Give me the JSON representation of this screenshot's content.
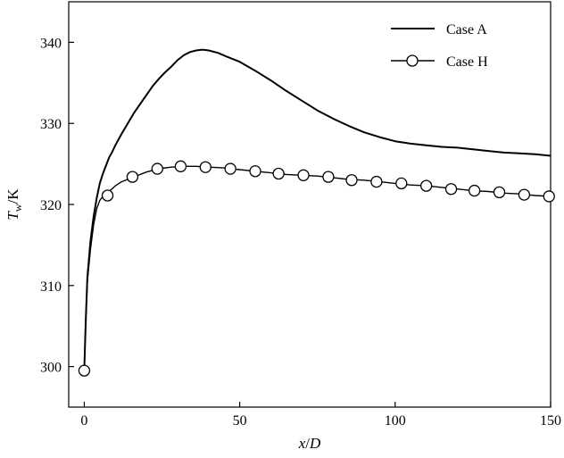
{
  "chart_data": {
    "type": "line",
    "title": "",
    "xlabel": {
      "main": "x",
      "sep": "/",
      "sub": "D"
    },
    "ylabel": {
      "main": "T",
      "subscript": "w",
      "unit": "/K"
    },
    "xlim": [
      -5,
      150
    ],
    "ylim": [
      295,
      345
    ],
    "xticks": [
      0,
      50,
      100,
      150
    ],
    "yticks": [
      300,
      310,
      320,
      330,
      340
    ],
    "grid": false,
    "legend_position": "top-right",
    "series": [
      {
        "name": "Case A",
        "marker": "none",
        "x": [
          0,
          0.5,
          1,
          2,
          3,
          4,
          5,
          6,
          7,
          8,
          9,
          10,
          12,
          14,
          16,
          18,
          20,
          22,
          24,
          26,
          28,
          30,
          32,
          34,
          36,
          38,
          40,
          43,
          46,
          50,
          55,
          60,
          65,
          70,
          75,
          80,
          85,
          90,
          95,
          100,
          105,
          110,
          115,
          120,
          125,
          130,
          135,
          140,
          145,
          150
        ],
        "y": [
          299.5,
          306,
          311,
          315.5,
          318.5,
          320.8,
          322.6,
          323.8,
          324.8,
          325.8,
          326.5,
          327.3,
          328.7,
          330.0,
          331.3,
          332.4,
          333.5,
          334.6,
          335.5,
          336.3,
          337.0,
          337.8,
          338.4,
          338.8,
          339.0,
          339.1,
          339.0,
          338.7,
          338.2,
          337.6,
          336.5,
          335.3,
          334.0,
          332.8,
          331.6,
          330.6,
          329.7,
          328.9,
          328.3,
          327.8,
          327.5,
          327.3,
          327.1,
          327.0,
          326.8,
          326.6,
          326.4,
          326.3,
          326.2,
          326.0
        ]
      },
      {
        "name": "Case H",
        "marker": "circle",
        "x": [
          0,
          0.5,
          1,
          2,
          3,
          4,
          5,
          6,
          7,
          8,
          10,
          12,
          14,
          16,
          20,
          24,
          28,
          32,
          36,
          40,
          45,
          50,
          55,
          60,
          65,
          70,
          75,
          80,
          85,
          90,
          95,
          100,
          105,
          110,
          115,
          120,
          125,
          130,
          135,
          140,
          145,
          150
        ],
        "y": [
          299.5,
          306,
          310.5,
          314.5,
          317.5,
          319.5,
          320.5,
          321.0,
          321.3,
          321.6,
          322.3,
          322.8,
          323.1,
          323.4,
          324.0,
          324.4,
          324.6,
          324.7,
          324.7,
          324.6,
          324.5,
          324.3,
          324.1,
          323.9,
          323.7,
          323.6,
          323.5,
          323.3,
          323.1,
          323.0,
          322.8,
          322.6,
          322.4,
          322.3,
          322.1,
          321.9,
          321.7,
          321.6,
          321.4,
          321.3,
          321.1,
          321.0
        ],
        "marker_x": [
          0,
          7.5,
          15.5,
          23.5,
          31,
          39,
          47,
          55,
          62.5,
          70.5,
          78.5,
          86,
          94,
          102,
          110,
          118,
          125.5,
          133.5,
          141.5,
          149.5
        ],
        "marker_y": [
          299.5,
          321.1,
          323.4,
          324.4,
          324.7,
          324.6,
          324.4,
          324.1,
          323.8,
          323.6,
          323.4,
          323.0,
          322.8,
          322.6,
          322.3,
          321.9,
          321.7,
          321.5,
          321.2,
          321.0
        ]
      }
    ]
  }
}
